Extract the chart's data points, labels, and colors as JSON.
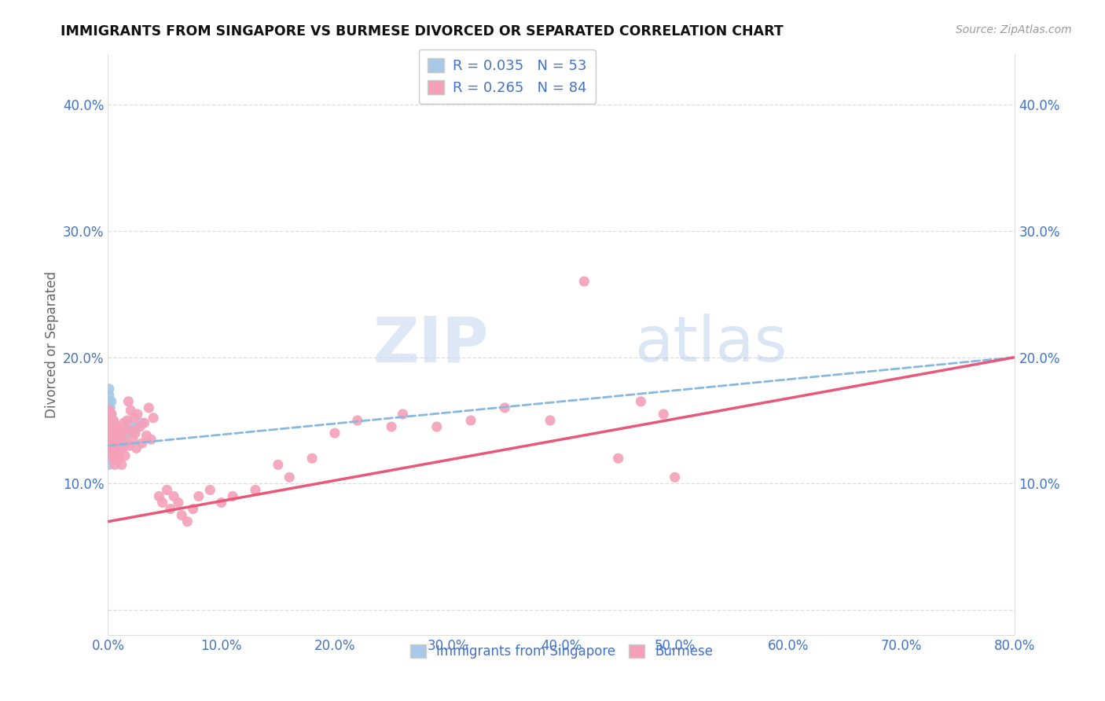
{
  "title": "IMMIGRANTS FROM SINGAPORE VS BURMESE DIVORCED OR SEPARATED CORRELATION CHART",
  "source": "Source: ZipAtlas.com",
  "ylabel": "Divorced or Separated",
  "xlim": [
    0.0,
    0.8
  ],
  "ylim": [
    -0.02,
    0.44
  ],
  "xticks": [
    0.0,
    0.1,
    0.2,
    0.3,
    0.4,
    0.5,
    0.6,
    0.7,
    0.8
  ],
  "xticklabels": [
    "0.0%",
    "10.0%",
    "20.0%",
    "30.0%",
    "40.0%",
    "50.0%",
    "60.0%",
    "70.0%",
    "80.0%"
  ],
  "yticks": [
    0.0,
    0.1,
    0.2,
    0.3,
    0.4
  ],
  "yticklabels": [
    "",
    "10.0%",
    "20.0%",
    "30.0%",
    "40.0%"
  ],
  "legend_r1": "R = 0.035",
  "legend_n1": "N = 53",
  "legend_r2": "R = 0.265",
  "legend_n2": "N = 84",
  "color_singapore": "#a8c8e8",
  "color_burmese": "#f4a0b8",
  "color_singapore_line": "#88b8e0",
  "color_burmese_line": "#e85878",
  "color_text_blue": "#4472c4",
  "watermark_zip": "ZIP",
  "watermark_atlas": "atlas",
  "sg_x": [
    0.001,
    0.001,
    0.001,
    0.001,
    0.001,
    0.001,
    0.001,
    0.001,
    0.001,
    0.001,
    0.001,
    0.001,
    0.001,
    0.001,
    0.001,
    0.001,
    0.001,
    0.001,
    0.002,
    0.002,
    0.002,
    0.002,
    0.002,
    0.002,
    0.002,
    0.003,
    0.003,
    0.003,
    0.003,
    0.003,
    0.003,
    0.004,
    0.004,
    0.004,
    0.005,
    0.005,
    0.005,
    0.006,
    0.006,
    0.007,
    0.008,
    0.009,
    0.01,
    0.011,
    0.012,
    0.014,
    0.015,
    0.016,
    0.018,
    0.02,
    0.022,
    0.025,
    0.03
  ],
  "sg_y": [
    0.115,
    0.12,
    0.125,
    0.13,
    0.135,
    0.138,
    0.14,
    0.142,
    0.145,
    0.148,
    0.15,
    0.152,
    0.155,
    0.158,
    0.16,
    0.165,
    0.17,
    0.175,
    0.125,
    0.13,
    0.135,
    0.14,
    0.145,
    0.15,
    0.16,
    0.125,
    0.13,
    0.14,
    0.148,
    0.155,
    0.165,
    0.13,
    0.14,
    0.15,
    0.128,
    0.138,
    0.148,
    0.13,
    0.145,
    0.135,
    0.14,
    0.138,
    0.135,
    0.14,
    0.135,
    0.14,
    0.138,
    0.142,
    0.14,
    0.145,
    0.142,
    0.145,
    0.148
  ],
  "bm_x": [
    0.001,
    0.001,
    0.001,
    0.001,
    0.001,
    0.001,
    0.001,
    0.002,
    0.002,
    0.002,
    0.002,
    0.003,
    0.003,
    0.003,
    0.003,
    0.004,
    0.004,
    0.005,
    0.005,
    0.005,
    0.006,
    0.006,
    0.007,
    0.007,
    0.008,
    0.008,
    0.009,
    0.01,
    0.01,
    0.011,
    0.012,
    0.012,
    0.013,
    0.014,
    0.015,
    0.015,
    0.016,
    0.017,
    0.018,
    0.019,
    0.02,
    0.021,
    0.022,
    0.023,
    0.024,
    0.025,
    0.026,
    0.028,
    0.03,
    0.032,
    0.034,
    0.036,
    0.038,
    0.04,
    0.045,
    0.048,
    0.052,
    0.055,
    0.058,
    0.062,
    0.065,
    0.07,
    0.075,
    0.08,
    0.09,
    0.1,
    0.11,
    0.13,
    0.15,
    0.16,
    0.18,
    0.2,
    0.22,
    0.25,
    0.26,
    0.29,
    0.32,
    0.35,
    0.39,
    0.42,
    0.45,
    0.47,
    0.49,
    0.5
  ],
  "bm_y": [
    0.128,
    0.133,
    0.138,
    0.143,
    0.148,
    0.153,
    0.158,
    0.125,
    0.13,
    0.14,
    0.15,
    0.122,
    0.13,
    0.14,
    0.155,
    0.125,
    0.145,
    0.12,
    0.135,
    0.15,
    0.115,
    0.13,
    0.12,
    0.14,
    0.125,
    0.145,
    0.135,
    0.12,
    0.14,
    0.13,
    0.115,
    0.138,
    0.128,
    0.148,
    0.122,
    0.142,
    0.132,
    0.15,
    0.165,
    0.13,
    0.158,
    0.142,
    0.135,
    0.152,
    0.14,
    0.128,
    0.155,
    0.145,
    0.132,
    0.148,
    0.138,
    0.16,
    0.135,
    0.152,
    0.09,
    0.085,
    0.095,
    0.08,
    0.09,
    0.085,
    0.075,
    0.07,
    0.08,
    0.09,
    0.095,
    0.085,
    0.09,
    0.095,
    0.115,
    0.105,
    0.12,
    0.14,
    0.15,
    0.145,
    0.155,
    0.145,
    0.15,
    0.16,
    0.15,
    0.26,
    0.12,
    0.165,
    0.155,
    0.105
  ],
  "sg_line_x": [
    0.0,
    0.8
  ],
  "sg_line_y": [
    0.13,
    0.2
  ],
  "bm_line_x": [
    0.0,
    0.8
  ],
  "bm_line_y": [
    0.07,
    0.2
  ]
}
